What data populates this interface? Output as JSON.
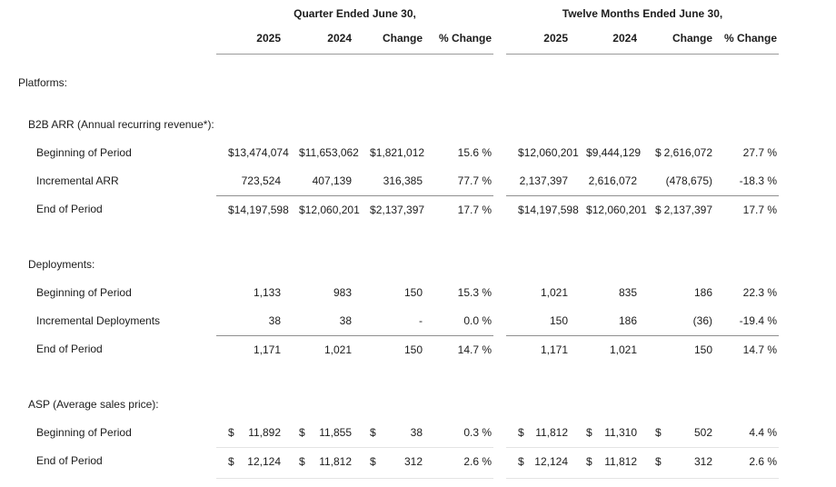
{
  "table": {
    "groups": [
      {
        "title": "Quarter Ended June 30,",
        "columns": [
          "2025",
          "2024",
          "Change",
          "% Change"
        ]
      },
      {
        "title": "Twelve Months Ended June 30,",
        "columns": [
          "2025",
          "2024",
          "Change",
          "% Change"
        ]
      }
    ],
    "rows": [
      {
        "type": "section",
        "indent": 0,
        "label": "Platforms:"
      },
      {
        "type": "section",
        "indent": 1,
        "label": "B2B ARR (Annual recurring revenue*):"
      },
      {
        "type": "data",
        "indent": 2,
        "label": "Beginning of Period",
        "cells": [
          {
            "cur": "$",
            "val": "13,474,074"
          },
          {
            "cur": "$",
            "val": "11,653,062"
          },
          {
            "cur": "$",
            "val": "1,821,012"
          },
          {
            "pct": "15.6 %"
          },
          {
            "cur": "$",
            "val": "12,060,201"
          },
          {
            "cur": "$",
            "val": "9,444,129"
          },
          {
            "cur": "$",
            "val": "2,616,072"
          },
          {
            "pct": "27.7 %"
          }
        ]
      },
      {
        "type": "data",
        "indent": 2,
        "label": "Incremental ARR",
        "cells": [
          {
            "val": "723,524"
          },
          {
            "val": "407,139"
          },
          {
            "val": "316,385"
          },
          {
            "pct": "77.7 %"
          },
          {
            "val": "2,137,397"
          },
          {
            "val": "2,616,072"
          },
          {
            "val": "(478,675)"
          },
          {
            "pct": "-18.3 %"
          }
        ]
      },
      {
        "type": "data",
        "indent": 2,
        "label": "End of Period",
        "rule_above": "solid",
        "cells": [
          {
            "cur": "$",
            "val": "14,197,598"
          },
          {
            "cur": "$",
            "val": "12,060,201"
          },
          {
            "cur": "$",
            "val": "2,137,397"
          },
          {
            "pct": "17.7 %"
          },
          {
            "cur": "$",
            "val": "14,197,598"
          },
          {
            "cur": "$",
            "val": "12,060,201"
          },
          {
            "cur": "$",
            "val": "2,137,397"
          },
          {
            "pct": "17.7 %"
          }
        ]
      },
      {
        "type": "section",
        "indent": 1,
        "label": "Deployments:"
      },
      {
        "type": "data",
        "indent": 2,
        "label": "Beginning of Period",
        "cells": [
          {
            "val": "1,133"
          },
          {
            "val": "983"
          },
          {
            "val": "150"
          },
          {
            "pct": "15.3 %"
          },
          {
            "val": "1,021"
          },
          {
            "val": "835"
          },
          {
            "val": "186"
          },
          {
            "pct": "22.3 %"
          }
        ]
      },
      {
        "type": "data",
        "indent": 2,
        "label": "Incremental Deployments",
        "cells": [
          {
            "val": "38"
          },
          {
            "val": "38"
          },
          {
            "val": "-"
          },
          {
            "pct": "0.0 %"
          },
          {
            "val": "150"
          },
          {
            "val": "186"
          },
          {
            "val": "(36)"
          },
          {
            "pct": "-19.4 %"
          }
        ]
      },
      {
        "type": "data",
        "indent": 2,
        "label": "End of Period",
        "rule_above": "solid",
        "cells": [
          {
            "val": "1,171"
          },
          {
            "val": "1,021"
          },
          {
            "val": "150"
          },
          {
            "pct": "14.7 %"
          },
          {
            "val": "1,171"
          },
          {
            "val": "1,021"
          },
          {
            "val": "150"
          },
          {
            "pct": "14.7 %"
          }
        ]
      },
      {
        "type": "section",
        "indent": 1,
        "label": "ASP (Average sales price):"
      },
      {
        "type": "data",
        "indent": 2,
        "label": "Beginning of Period",
        "cells": [
          {
            "cur": "$",
            "val": "11,892"
          },
          {
            "cur": "$",
            "val": "11,855"
          },
          {
            "cur": "$",
            "val": "38"
          },
          {
            "pct": "0.3 %"
          },
          {
            "cur": "$",
            "val": "11,812"
          },
          {
            "cur": "$",
            "val": "11,310"
          },
          {
            "cur": "$",
            "val": "502"
          },
          {
            "pct": "4.4 %"
          }
        ]
      },
      {
        "type": "data",
        "indent": 2,
        "label": "End of Period",
        "rule_above": "faint",
        "rule_below": "faint",
        "cells": [
          {
            "cur": "$",
            "val": "12,124"
          },
          {
            "cur": "$",
            "val": "11,812"
          },
          {
            "cur": "$",
            "val": "312"
          },
          {
            "pct": "2.6 %"
          },
          {
            "cur": "$",
            "val": "12,124"
          },
          {
            "cur": "$",
            "val": "11,812"
          },
          {
            "cur": "$",
            "val": "312"
          },
          {
            "pct": "2.6 %"
          }
        ]
      }
    ]
  },
  "colors": {
    "background": "#ffffff",
    "text": "#1c1c1c",
    "rule": "#9a9a9a",
    "rule_total": "#8f8f8f",
    "rule_faint": "#e4e4e4"
  }
}
